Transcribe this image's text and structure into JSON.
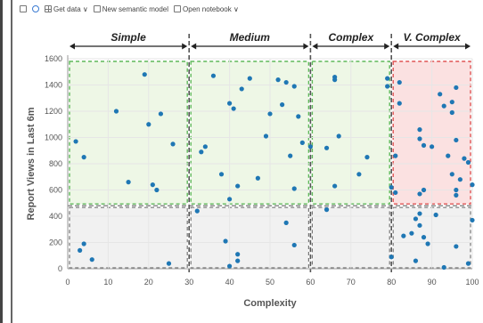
{
  "toolbar": {
    "items": [
      {
        "label": "",
        "icon": "report-icon"
      },
      {
        "label": "",
        "icon": "gear-icon"
      },
      {
        "label": "Get data ∨",
        "icon": "table-icon"
      },
      {
        "label": "New semantic model",
        "icon": "model-icon"
      },
      {
        "label": "Open notebook ∨",
        "icon": "notebook-icon"
      }
    ]
  },
  "chart_data": {
    "type": "scatter",
    "title": "",
    "xlabel": "Complexity",
    "ylabel": "Report Views in Last 6m",
    "xlim": [
      0,
      100
    ],
    "ylim": [
      0,
      1600
    ],
    "xticks": [
      0,
      10,
      20,
      30,
      40,
      50,
      60,
      70,
      80,
      90,
      100
    ],
    "yticks": [
      0,
      200,
      400,
      600,
      800,
      1000,
      1200,
      1400,
      1600
    ],
    "grid": true,
    "point_color": "#1f77b4",
    "categories": [
      {
        "label": "Simple",
        "x0": 0,
        "x1": 30
      },
      {
        "label": "Medium",
        "x0": 30,
        "x1": 60
      },
      {
        "label": "Complex",
        "x0": 60,
        "x1": 80
      },
      {
        "label": "V. Complex",
        "x0": 80,
        "x1": 100
      }
    ],
    "threshold_y": 480,
    "region_colors": {
      "high": "#eef7e6",
      "low": "#f1f1f1",
      "alert": "#fbe1e1"
    },
    "border_colors": {
      "green": "#5fb85a",
      "gray": "#777777",
      "red": "#e05555"
    },
    "points": [
      [
        2,
        970
      ],
      [
        4,
        850
      ],
      [
        12,
        1200
      ],
      [
        15,
        660
      ],
      [
        19,
        1480
      ],
      [
        20,
        1100
      ],
      [
        21,
        640
      ],
      [
        22,
        600
      ],
      [
        23,
        1180
      ],
      [
        26,
        950
      ],
      [
        3,
        140
      ],
      [
        4,
        190
      ],
      [
        6,
        70
      ],
      [
        25,
        40
      ],
      [
        33,
        890
      ],
      [
        34,
        930
      ],
      [
        36,
        1470
      ],
      [
        38,
        720
      ],
      [
        40,
        1260
      ],
      [
        41,
        1220
      ],
      [
        42,
        630
      ],
      [
        43,
        1370
      ],
      [
        45,
        1450
      ],
      [
        47,
        690
      ],
      [
        49,
        1010
      ],
      [
        50,
        1180
      ],
      [
        52,
        1440
      ],
      [
        53,
        1250
      ],
      [
        54,
        1420
      ],
      [
        55,
        860
      ],
      [
        56,
        1390
      ],
      [
        56,
        610
      ],
      [
        57,
        1160
      ],
      [
        58,
        960
      ],
      [
        40,
        530
      ],
      [
        32,
        440
      ],
      [
        39,
        210
      ],
      [
        40,
        20
      ],
      [
        42,
        60
      ],
      [
        42,
        110
      ],
      [
        54,
        350
      ],
      [
        56,
        180
      ],
      [
        60,
        930
      ],
      [
        64,
        920
      ],
      [
        66,
        1460
      ],
      [
        66,
        1440
      ],
      [
        66,
        630
      ],
      [
        67,
        1010
      ],
      [
        72,
        720
      ],
      [
        74,
        850
      ],
      [
        79,
        1450
      ],
      [
        79,
        1390
      ],
      [
        80,
        620
      ],
      [
        81,
        580
      ],
      [
        81,
        860
      ],
      [
        64,
        450
      ],
      [
        80,
        90
      ],
      [
        82,
        1420
      ],
      [
        82,
        1260
      ],
      [
        87,
        1060
      ],
      [
        87,
        990
      ],
      [
        88,
        940
      ],
      [
        87,
        570
      ],
      [
        88,
        600
      ],
      [
        90,
        930
      ],
      [
        92,
        1330
      ],
      [
        93,
        1240
      ],
      [
        95,
        1270
      ],
      [
        95,
        1190
      ],
      [
        96,
        1380
      ],
      [
        94,
        860
      ],
      [
        95,
        720
      ],
      [
        96,
        560
      ],
      [
        96,
        600
      ],
      [
        97,
        680
      ],
      [
        98,
        840
      ],
      [
        99,
        810
      ],
      [
        100,
        640
      ],
      [
        96,
        980
      ],
      [
        83,
        250
      ],
      [
        85,
        270
      ],
      [
        86,
        380
      ],
      [
        87,
        420
      ],
      [
        87,
        330
      ],
      [
        88,
        240
      ],
      [
        89,
        190
      ],
      [
        91,
        410
      ],
      [
        93,
        10
      ],
      [
        96,
        170
      ],
      [
        99,
        40
      ],
      [
        100,
        370
      ],
      [
        86,
        60
      ]
    ]
  }
}
